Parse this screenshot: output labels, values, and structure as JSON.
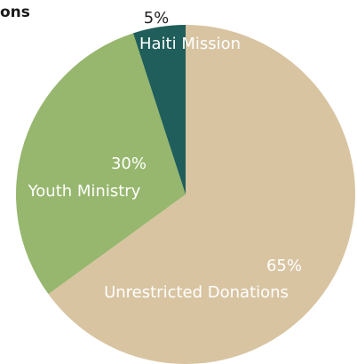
{
  "chart_data": {
    "type": "pie",
    "title": "ons",
    "slices": [
      {
        "label": "Unrestricted Donations",
        "value": 65,
        "value_label": "65%",
        "color": "#d8c4a1",
        "label_color": "#ffffff"
      },
      {
        "label": "Youth Ministry",
        "value": 30,
        "value_label": "30%",
        "color": "#97b76e",
        "label_color": "#ffffff"
      },
      {
        "label": "Haiti Mission",
        "value": 5,
        "value_label": "5%",
        "color": "#1f5e5a",
        "label_color": "#ffffff",
        "value_label_color": "#222222"
      }
    ],
    "start": "top",
    "direction": "clockwise"
  }
}
